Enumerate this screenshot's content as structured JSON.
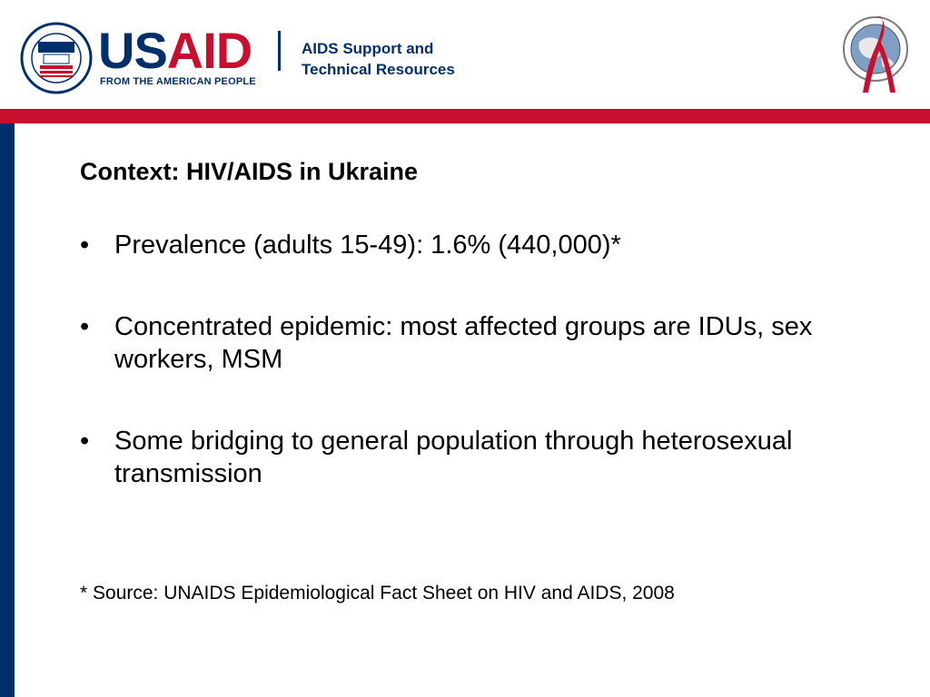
{
  "header": {
    "usaid_logo": {
      "us": "US",
      "aid": "AID",
      "tagline": "FROM THE AMERICAN PEOPLE",
      "seal_icon": "usaid-seal-icon"
    },
    "program_name_line1": "AIDS Support and",
    "program_name_line2": "Technical Resources",
    "pepfar_icon": "pepfar-globe-ribbon-icon"
  },
  "colors": {
    "brand_blue": "#002f6c",
    "brand_red": "#c8102e"
  },
  "slide": {
    "title": "Context: HIV/AIDS in Ukraine",
    "bullet_marker": "•",
    "bullets": [
      "Prevalence (adults 15-49): 1.6% (440,000)*",
      "Concentrated epidemic: most affected groups are IDUs, sex workers, MSM",
      "Some bridging to general population through heterosexual transmission"
    ],
    "footnote": "* Source: UNAIDS Epidemiological Fact Sheet on HIV and AIDS, 2008"
  }
}
